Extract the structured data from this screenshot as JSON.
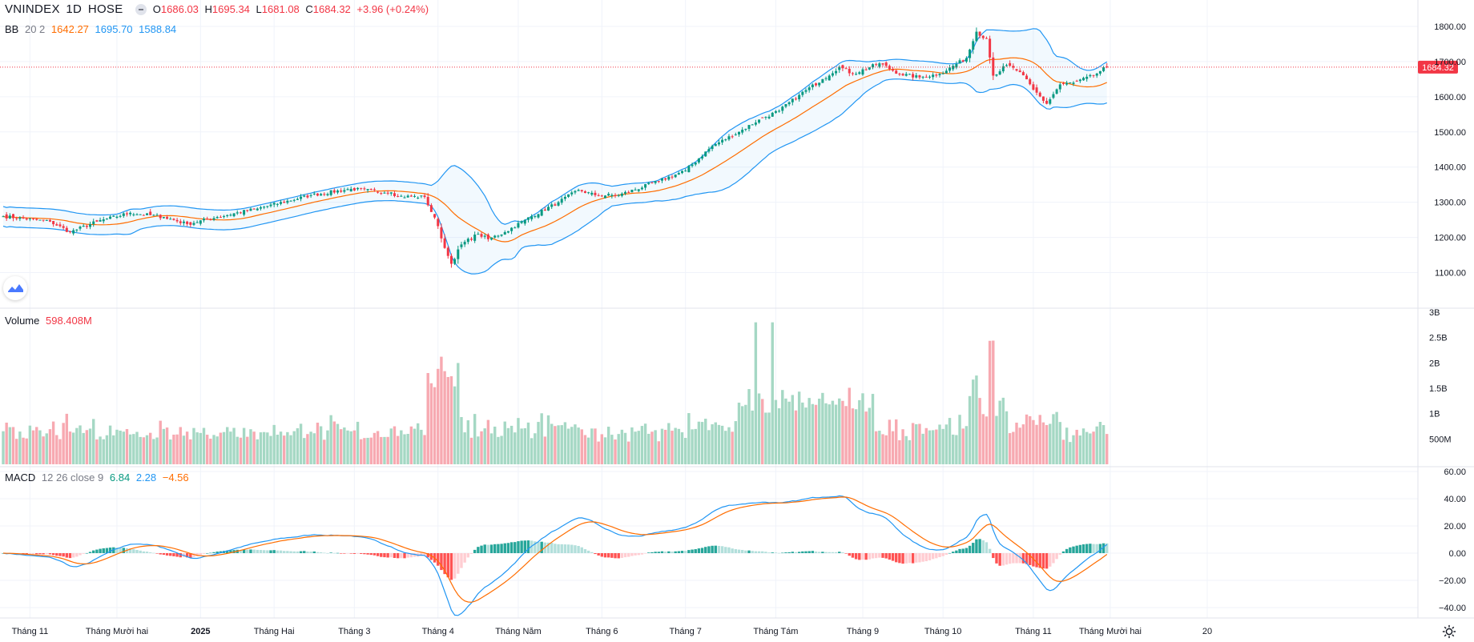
{
  "header": {
    "symbol": "VNINDEX",
    "interval": "1D",
    "exchange": "HOSE",
    "open_label": "O",
    "open": "1686.03",
    "high_label": "H",
    "high": "1695.34",
    "low_label": "L",
    "low": "1681.08",
    "close_label": "C",
    "close": "1684.32",
    "change": "+3.96 (+0.24%)"
  },
  "bb_legend": {
    "name": "BB",
    "params": "20 2",
    "basis": "1642.27",
    "upper": "1695.70",
    "lower": "1588.84"
  },
  "volume_legend": {
    "name": "Volume",
    "value": "598.408M"
  },
  "macd_legend": {
    "name": "MACD",
    "params": "12 26 close 9",
    "hist": "6.84",
    "macd": "2.28",
    "signal": "−4.56"
  },
  "price_label": "1684.32",
  "colors": {
    "up": "#089981",
    "down": "#f23645",
    "upVol": "#a5d8c4",
    "downVol": "#f7a9b1",
    "basis": "#ff6d00",
    "band": "#2196f3",
    "macd": "#2196f3",
    "signal": "#ff6d00",
    "histUp": "#26a69a",
    "histUpFade": "#b2dfdb",
    "histDown": "#ff5252",
    "histDownFade": "#ffcdd2"
  },
  "chart_data": [
    {
      "type": "candlestick",
      "title": "VNINDEX 1D HOSE",
      "ylim": [
        1060,
        1810
      ],
      "y_ticks": [
        "1800.00",
        "1700.00",
        "1600.00",
        "1500.00",
        "1400.00",
        "1300.00",
        "1200.00",
        "1100.00"
      ],
      "x_labels": [
        "Tháng 11",
        "Tháng Mười hai",
        "2025",
        "Tháng Hai",
        "Tháng 3",
        "Tháng 4",
        "Tháng Năm",
        "Tháng 6",
        "Tháng 7",
        "Tháng Tám",
        "Tháng 9",
        "Tháng 10",
        "Tháng 11",
        "Tháng Mười hai",
        "20"
      ],
      "anchors": [
        [
          0,
          1260
        ],
        [
          14,
          1245
        ],
        [
          20,
          1215
        ],
        [
          28,
          1245
        ],
        [
          38,
          1270
        ],
        [
          48,
          1258
        ],
        [
          55,
          1238
        ],
        [
          64,
          1258
        ],
        [
          76,
          1282
        ],
        [
          92,
          1320
        ],
        [
          104,
          1338
        ],
        [
          116,
          1328
        ],
        [
          118,
          1317
        ],
        [
          126,
          1315
        ],
        [
          130,
          1232
        ],
        [
          132,
          1170
        ],
        [
          134,
          1125
        ],
        [
          137,
          1180
        ],
        [
          142,
          1210
        ],
        [
          145,
          1195
        ],
        [
          150,
          1215
        ],
        [
          156,
          1250
        ],
        [
          166,
          1300
        ],
        [
          172,
          1335
        ],
        [
          177,
          1320
        ],
        [
          184,
          1320
        ],
        [
          196,
          1360
        ],
        [
          204,
          1390
        ],
        [
          212,
          1460
        ],
        [
          220,
          1500
        ],
        [
          226,
          1535
        ],
        [
          232,
          1560
        ],
        [
          238,
          1605
        ],
        [
          245,
          1650
        ],
        [
          250,
          1685
        ],
        [
          254,
          1665
        ],
        [
          262,
          1695
        ],
        [
          268,
          1665
        ],
        [
          274,
          1655
        ],
        [
          280,
          1665
        ],
        [
          288,
          1710
        ],
        [
          291,
          1785
        ],
        [
          294,
          1765
        ],
        [
          296,
          1660
        ],
        [
          300,
          1690
        ],
        [
          304,
          1670
        ],
        [
          308,
          1620
        ],
        [
          312,
          1580
        ],
        [
          316,
          1635
        ],
        [
          320,
          1640
        ],
        [
          326,
          1660
        ],
        [
          330,
          1686
        ]
      ],
      "bb": {
        "period": 20,
        "mult": 2
      }
    },
    {
      "type": "bar",
      "title": "Volume",
      "y_ticks": [
        "3B",
        "2.5B",
        "2B",
        "1.5B",
        "1B",
        "500M"
      ],
      "ylim": [
        0,
        3000
      ],
      "last_value_million": 598.408
    },
    {
      "type": "line",
      "title": "MACD 12 26 close 9",
      "y_ticks": [
        "60.00",
        "40.00",
        "20.00",
        "0.00",
        "−20.00",
        "−40.00"
      ],
      "ylim": [
        -40,
        60
      ],
      "series": [
        {
          "name": "MACD"
        },
        {
          "name": "Signal"
        },
        {
          "name": "Histogram"
        }
      ]
    }
  ]
}
